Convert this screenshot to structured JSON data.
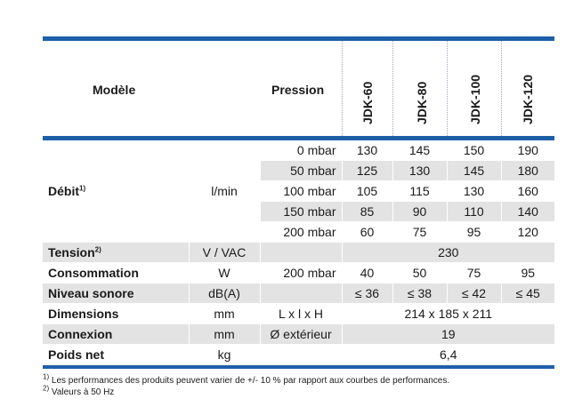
{
  "header": {
    "model_label": "Modèle",
    "pressure_label": "Pression",
    "models": [
      "JDK-60",
      "JDK-80",
      "JDK-100",
      "JDK-120"
    ]
  },
  "debit": {
    "label": "Débit",
    "sup": "1)",
    "unit": "l/min",
    "rows": [
      {
        "pressure": "0 mbar",
        "values": [
          "130",
          "145",
          "150",
          "190"
        ]
      },
      {
        "pressure": "50 mbar",
        "values": [
          "125",
          "130",
          "145",
          "180"
        ]
      },
      {
        "pressure": "100 mbar",
        "values": [
          "105",
          "115",
          "130",
          "160"
        ]
      },
      {
        "pressure": "150 mbar",
        "values": [
          "85",
          "90",
          "110",
          "140"
        ]
      },
      {
        "pressure": "200 mbar",
        "values": [
          "60",
          "75",
          "95",
          "120"
        ]
      }
    ]
  },
  "tension": {
    "label": "Tension",
    "sup": "2)",
    "unit": "V / VAC",
    "value": "230"
  },
  "consommation": {
    "label": "Consommation",
    "unit": "W",
    "pressure": "200 mbar",
    "values": [
      "40",
      "50",
      "75",
      "95"
    ]
  },
  "niveau": {
    "label": "Niveau sonore",
    "unit": "dB(A)",
    "values": [
      "≤ 36",
      "≤ 38",
      "≤ 42",
      "≤ 45"
    ]
  },
  "dimensions": {
    "label": "Dimensions",
    "unit": "mm",
    "pressure": "L x l x H",
    "value": "214 x 185 x 211"
  },
  "connexion": {
    "label": "Connexion",
    "unit": "mm",
    "pressure": "Ø extérieur",
    "value": "19"
  },
  "poids": {
    "label": "Poids net",
    "unit": "kg",
    "value": "6,4"
  },
  "footnotes": [
    {
      "mark": "1)",
      "text": "Les performances des produits peuvent varier de +/- 10 % par rapport aux courbes de performances."
    },
    {
      "mark": "2)",
      "text": "Valeurs à 50 Hz"
    }
  ]
}
